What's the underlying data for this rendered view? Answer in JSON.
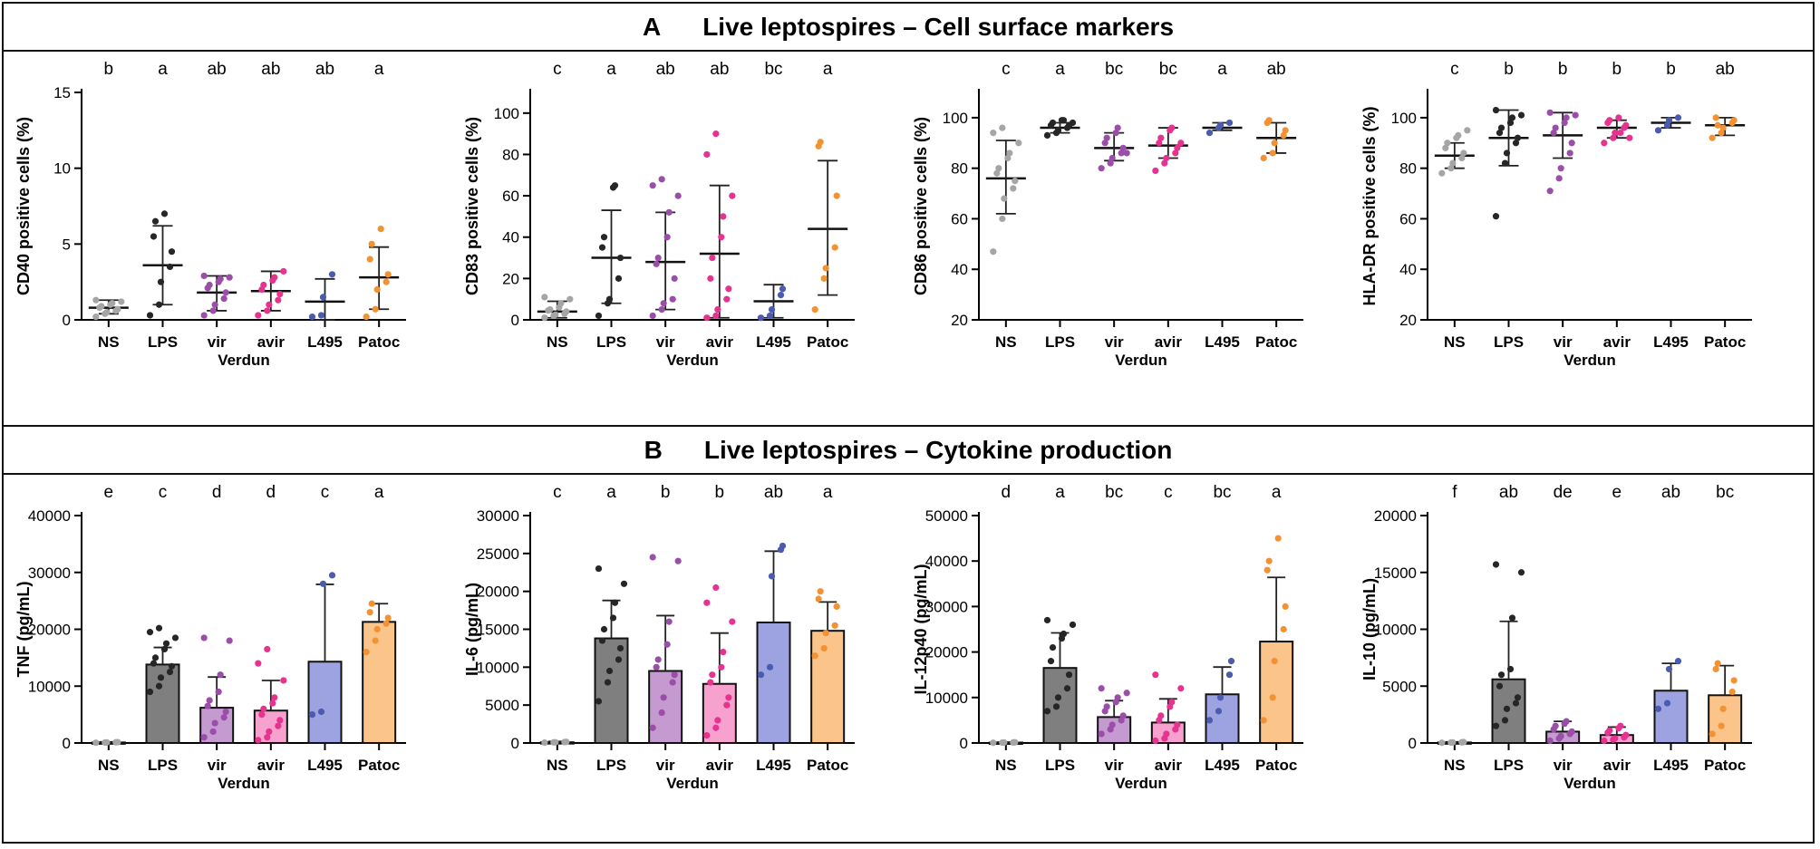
{
  "section_a": {
    "letter": "A",
    "title": "Live leptospires – Cell surface markers"
  },
  "section_b": {
    "letter": "B",
    "title": "Live leptospires – Cytokine production"
  },
  "colors": {
    "NS": "#a5a5a5",
    "LPS": "#262626",
    "vir": "#9a4ea8",
    "avir": "#e6338f",
    "L495": "#4a5bb0",
    "Patoc": "#f39233"
  },
  "bar_fills": {
    "NS": "#d9d9d9",
    "LPS": "#7f7f7f",
    "vir": "#c49ad0",
    "avir": "#f7a1cf",
    "L495": "#9ca3e0",
    "Patoc": "#fbc48a"
  },
  "chart_data": [
    {
      "type": "scatter",
      "panel": "A",
      "title": "",
      "ylabel": "CD40 positive cells (%)",
      "xlabel": "Verdun",
      "ylim": [
        0,
        15
      ],
      "yticks": [
        0,
        5,
        10,
        15
      ],
      "categories": [
        "NS",
        "LPS",
        "vir",
        "avir",
        "L495",
        "Patoc"
      ],
      "significance": [
        "b",
        "a",
        "ab",
        "ab",
        "ab",
        "a"
      ],
      "means": [
        0.8,
        3.6,
        1.8,
        1.9,
        1.2,
        2.8
      ],
      "err_low": [
        0.4,
        1.0,
        0.6,
        0.6,
        0.0,
        0.7
      ],
      "err_high": [
        1.3,
        6.2,
        2.9,
        3.2,
        2.7,
        4.8
      ],
      "points": [
        [
          0.2,
          0.4,
          0.5,
          0.6,
          0.7,
          0.8,
          0.9,
          1.0,
          1.1,
          1.2,
          1.3
        ],
        [
          0.3,
          1.0,
          2.5,
          3.5,
          4.5,
          5.5,
          6.5,
          7.0
        ],
        [
          0.3,
          0.6,
          1.0,
          1.4,
          1.8,
          2.1,
          2.3,
          2.5,
          2.7,
          2.8,
          2.9
        ],
        [
          0.3,
          0.6,
          1.0,
          1.3,
          1.7,
          2.0,
          2.3,
          2.6,
          2.8,
          3.2
        ],
        [
          0.2,
          0.3,
          1.5,
          3.0
        ],
        [
          0.2,
          0.7,
          2.0,
          2.5,
          3.0,
          4.0,
          5.0,
          6.0
        ]
      ]
    },
    {
      "type": "scatter",
      "panel": "A",
      "title": "",
      "ylabel": "CD83 positive cells (%)",
      "xlabel": "Verdun",
      "ylim": [
        0,
        110
      ],
      "yticks": [
        0,
        20,
        40,
        60,
        80,
        100
      ],
      "categories": [
        "NS",
        "LPS",
        "vir",
        "avir",
        "L495",
        "Patoc"
      ],
      "significance": [
        "c",
        "a",
        "ab",
        "ab",
        "bc",
        "a"
      ],
      "means": [
        4,
        30,
        28,
        32,
        9,
        44
      ],
      "err_low": [
        1,
        8,
        5,
        1,
        1,
        12
      ],
      "err_high": [
        9,
        53,
        52,
        65,
        17,
        77
      ],
      "points": [
        [
          1,
          2,
          2.5,
          3,
          4,
          4.5,
          5,
          6,
          8,
          10,
          11
        ],
        [
          2,
          8,
          10,
          20,
          30,
          35,
          40,
          64,
          65
        ],
        [
          2,
          5,
          8,
          10,
          20,
          27,
          30,
          40,
          52,
          60,
          65,
          68
        ],
        [
          1,
          2,
          5,
          10,
          15,
          20,
          30,
          40,
          50,
          60,
          80,
          90
        ],
        [
          1,
          2,
          5,
          12,
          15
        ],
        [
          5,
          20,
          25,
          35,
          60,
          84,
          86
        ]
      ]
    },
    {
      "type": "scatter",
      "panel": "A",
      "title": "",
      "ylabel": "CD86 positive cells (%)",
      "xlabel": "Verdun",
      "ylim": [
        20,
        110
      ],
      "yticks": [
        20,
        40,
        60,
        80,
        100
      ],
      "categories": [
        "NS",
        "LPS",
        "vir",
        "avir",
        "L495",
        "Patoc"
      ],
      "significance": [
        "c",
        "a",
        "bc",
        "bc",
        "a",
        "ab"
      ],
      "means": [
        76,
        96,
        88,
        89,
        96,
        92
      ],
      "err_low": [
        62,
        94,
        83,
        84,
        95,
        86
      ],
      "err_high": [
        91,
        98,
        94,
        96,
        98,
        98
      ],
      "points": [
        [
          47,
          60,
          68,
          72,
          75,
          78,
          80,
          84,
          86,
          90,
          94,
          96
        ],
        [
          93,
          94,
          95,
          96,
          97,
          97,
          98,
          99,
          99,
          98
        ],
        [
          80,
          82,
          84,
          86,
          88,
          90,
          92,
          94,
          96,
          86
        ],
        [
          79,
          82,
          84,
          86,
          88,
          90,
          92,
          95,
          96,
          90
        ],
        [
          94,
          96,
          97,
          98
        ],
        [
          84,
          86,
          90,
          93,
          95,
          98,
          99
        ]
      ]
    },
    {
      "type": "scatter",
      "panel": "A",
      "title": "",
      "ylabel": "HLA-DR positive cells (%)",
      "xlabel": "Verdun",
      "ylim": [
        20,
        110
      ],
      "yticks": [
        20,
        40,
        60,
        80,
        100
      ],
      "categories": [
        "NS",
        "LPS",
        "vir",
        "avir",
        "L495",
        "Patoc"
      ],
      "significance": [
        "c",
        "b",
        "b",
        "b",
        "b",
        "ab"
      ],
      "means": [
        85,
        92,
        93,
        96,
        98,
        97
      ],
      "err_low": [
        80,
        81,
        84,
        92,
        96,
        93
      ],
      "err_high": [
        90,
        103,
        102,
        99,
        100,
        100
      ],
      "points": [
        [
          78,
          80,
          82,
          84,
          86,
          88,
          90,
          92,
          93,
          95
        ],
        [
          61,
          82,
          86,
          90,
          92,
          94,
          96,
          98,
          100,
          101,
          103
        ],
        [
          71,
          76,
          80,
          86,
          90,
          94,
          96,
          98,
          100,
          101,
          102
        ],
        [
          90,
          92,
          94,
          96,
          97,
          98,
          99,
          100,
          94,
          92
        ],
        [
          95,
          97,
          99,
          100
        ],
        [
          92,
          94,
          96,
          98,
          99,
          100,
          97
        ]
      ]
    },
    {
      "type": "bar",
      "panel": "B",
      "title": "",
      "ylabel": "TNF (pg/mL)",
      "xlabel": "Verdun",
      "ylim": [
        0,
        40000
      ],
      "yticks": [
        0,
        10000,
        20000,
        30000,
        40000
      ],
      "categories": [
        "NS",
        "LPS",
        "vir",
        "avir",
        "L495",
        "Patoc"
      ],
      "significance": [
        "e",
        "c",
        "d",
        "d",
        "c",
        "a"
      ],
      "values": [
        100,
        13800,
        6200,
        5700,
        14300,
        21300
      ],
      "err_high": [
        200,
        16800,
        11600,
        11000,
        27900,
        24500
      ],
      "points": [
        [
          50,
          80,
          100,
          120,
          150
        ],
        [
          9000,
          10000,
          11500,
          12500,
          13500,
          14000,
          15000,
          16500,
          17500,
          18500,
          19500,
          20200
        ],
        [
          1000,
          2000,
          3500,
          4500,
          5500,
          6500,
          7500,
          9000,
          12000,
          18000,
          18500
        ],
        [
          500,
          1000,
          2000,
          3000,
          4000,
          5000,
          6000,
          7000,
          8000,
          11000,
          14000,
          16500
        ],
        [
          5000,
          5500,
          28000,
          29500
        ],
        [
          16000,
          18000,
          20000,
          21000,
          22000,
          23000,
          24500
        ]
      ]
    },
    {
      "type": "bar",
      "panel": "B",
      "title": "",
      "ylabel": "IL-6 (pg/mL)",
      "xlabel": "Verdun",
      "ylim": [
        0,
        30000
      ],
      "yticks": [
        0,
        5000,
        10000,
        15000,
        20000,
        25000,
        30000
      ],
      "categories": [
        "NS",
        "LPS",
        "vir",
        "avir",
        "L495",
        "Patoc"
      ],
      "significance": [
        "c",
        "a",
        "b",
        "b",
        "ab",
        "a"
      ],
      "values": [
        100,
        13800,
        9500,
        7800,
        15900,
        14800
      ],
      "err_high": [
        200,
        18800,
        16800,
        14500,
        25300,
        18600
      ],
      "points": [
        [
          50,
          80,
          100,
          120,
          150
        ],
        [
          5500,
          8000,
          9500,
          11000,
          12500,
          13500,
          15000,
          16500,
          18500,
          21000,
          23000
        ],
        [
          2000,
          4000,
          6000,
          8000,
          9000,
          10000,
          11000,
          13000,
          16000,
          24000,
          24500
        ],
        [
          1000,
          2000,
          3000,
          5000,
          6000,
          8000,
          9000,
          10000,
          12000,
          16000,
          18500,
          20500
        ],
        [
          9000,
          10000,
          22000,
          25500,
          26000
        ],
        [
          11500,
          12500,
          14500,
          15500,
          18000,
          19000,
          20000
        ]
      ]
    },
    {
      "type": "bar",
      "panel": "B",
      "title": "",
      "ylabel": "IL-12p40 (pg/mL)",
      "xlabel": "Verdun",
      "ylim": [
        0,
        50000
      ],
      "yticks": [
        0,
        10000,
        20000,
        30000,
        40000,
        50000
      ],
      "categories": [
        "NS",
        "LPS",
        "vir",
        "avir",
        "L495",
        "Patoc"
      ],
      "significance": [
        "d",
        "a",
        "bc",
        "c",
        "bc",
        "a"
      ],
      "values": [
        100,
        16500,
        5700,
        4500,
        10700,
        22300
      ],
      "err_high": [
        200,
        24200,
        9300,
        9700,
        16700,
        36400
      ],
      "points": [
        [
          50,
          80,
          100,
          120,
          150
        ],
        [
          7000,
          8000,
          10000,
          12000,
          15000,
          18000,
          21000,
          23000,
          24000,
          26000,
          27000
        ],
        [
          2000,
          3000,
          4000,
          5000,
          6000,
          7000,
          8000,
          9000,
          10000,
          11000,
          12000
        ],
        [
          500,
          1000,
          2000,
          3000,
          4000,
          5000,
          6000,
          8000,
          9000,
          12000,
          15000
        ],
        [
          5000,
          7000,
          10000,
          15000,
          18000
        ],
        [
          5000,
          10000,
          18000,
          25000,
          30000,
          38000,
          40000,
          45000
        ]
      ]
    },
    {
      "type": "bar",
      "panel": "B",
      "title": "",
      "ylabel": "IL-10 (pg/mL)",
      "xlabel": "Verdun",
      "ylim": [
        0,
        20000
      ],
      "yticks": [
        0,
        5000,
        10000,
        15000,
        20000
      ],
      "categories": [
        "NS",
        "LPS",
        "vir",
        "avir",
        "L495",
        "Patoc"
      ],
      "significance": [
        "f",
        "ab",
        "de",
        "e",
        "ab",
        "bc"
      ],
      "values": [
        50,
        5600,
        1000,
        700,
        4600,
        4200
      ],
      "err_high": [
        100,
        10700,
        1900,
        1400,
        7000,
        6800
      ],
      "points": [
        [
          20,
          40,
          50,
          60,
          80
        ],
        [
          1500,
          2000,
          3000,
          3500,
          4000,
          5000,
          6000,
          6500,
          11000,
          15000,
          15700
        ],
        [
          200,
          400,
          600,
          800,
          1000,
          1200,
          1500,
          1700,
          1900
        ],
        [
          200,
          300,
          400,
          500,
          700,
          900,
          1100,
          1300,
          1500
        ],
        [
          3000,
          3500,
          6500,
          7200
        ],
        [
          800,
          1500,
          3000,
          4500,
          5500,
          6500,
          7000
        ]
      ]
    }
  ]
}
